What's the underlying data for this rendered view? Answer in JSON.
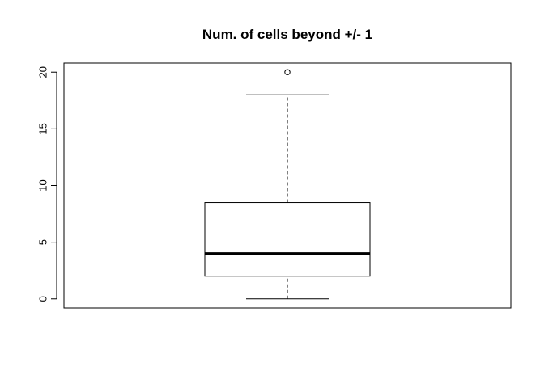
{
  "chart_data": {
    "type": "boxplot",
    "title": "Num. of cells beyond +/- 1",
    "xlabel": "",
    "ylabel": "",
    "ylim": [
      -0.8,
      20.8
    ],
    "yticks": [
      0,
      5,
      10,
      15,
      20
    ],
    "ytick_labels": [
      "0",
      "5",
      "10",
      "15",
      "20"
    ],
    "grid": false,
    "box": {
      "whisker_low": 0,
      "q1": 2,
      "median": 4,
      "q3": 8.5,
      "whisker_high": 18,
      "outliers": [
        20
      ]
    }
  }
}
